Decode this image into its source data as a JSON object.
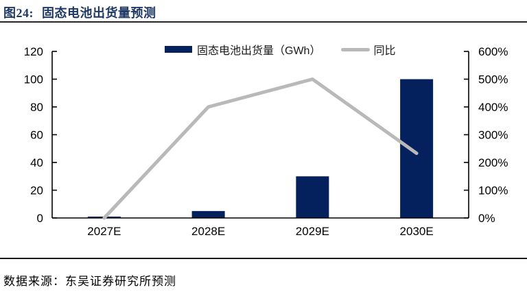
{
  "header": {
    "figure_label": "图24:",
    "title": "固态电池出货量预测"
  },
  "legend": {
    "bar_label": "固态电池出货量（GWh）",
    "line_label": "同比"
  },
  "footer": {
    "source": "数据来源：东吴证券研究所预测"
  },
  "colors": {
    "bar": "#04215e",
    "line": "#b9b9b9",
    "title": "#1f3864",
    "axis": "#000000",
    "rule": "#262626"
  },
  "chart_data": {
    "type": "bar",
    "subtype": "combo-bar-line",
    "title": "固态电池出货量预测",
    "categories": [
      "2027E",
      "2028E",
      "2029E",
      "2030E"
    ],
    "series": [
      {
        "name": "固态电池出货量（GWh）",
        "type": "bar",
        "axis": "left",
        "values": [
          1,
          5,
          30,
          100
        ]
      },
      {
        "name": "同比",
        "type": "line",
        "axis": "right",
        "unit": "%",
        "values": [
          0,
          400,
          500,
          233
        ]
      }
    ],
    "left_axis": {
      "min": 0,
      "max": 120,
      "tick_step": 20,
      "ticks": [
        0,
        20,
        40,
        60,
        80,
        100,
        120
      ]
    },
    "right_axis": {
      "min": 0,
      "max": 600,
      "tick_step": 100,
      "tick_labels": [
        "0%",
        "100%",
        "200%",
        "300%",
        "400%",
        "500%",
        "600%"
      ]
    },
    "legend_position": "top",
    "grid": false
  }
}
